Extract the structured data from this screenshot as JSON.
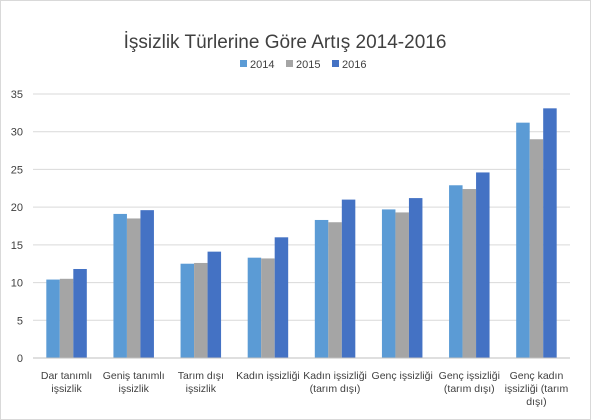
{
  "chart_data": {
    "type": "bar",
    "title": "İşsizlik Türlerine Göre Artış 2014-2016",
    "xlabel": "",
    "ylabel": "",
    "categories": [
      [
        "Dar tanımlı",
        "işsizlik"
      ],
      [
        "Geniş tanımlı",
        "işsizlik"
      ],
      [
        "Tarım dışı",
        "işsizlik"
      ],
      [
        "Kadın işsizliği"
      ],
      [
        "Kadın işsizliği",
        "(tarım dışı)"
      ],
      [
        "Genç işsizliği"
      ],
      [
        "Genç işsizliği",
        "(tarım dışı)"
      ],
      [
        "Genç kadın",
        "işsizliği (tarım",
        "dışı)"
      ]
    ],
    "series": [
      {
        "name": "2014",
        "color": "#5b9bd5",
        "values": [
          10.4,
          19.1,
          12.5,
          13.3,
          18.3,
          19.7,
          22.9,
          31.2
        ]
      },
      {
        "name": "2015",
        "color": "#a5a5a5",
        "values": [
          10.5,
          18.5,
          12.6,
          13.2,
          18.0,
          19.3,
          22.4,
          29.0
        ]
      },
      {
        "name": "2016",
        "color": "#4472c4",
        "values": [
          11.8,
          19.6,
          14.1,
          16.0,
          21.0,
          21.2,
          24.6,
          33.1
        ]
      }
    ],
    "ylim": [
      0,
      35
    ],
    "yticks": [
      "0",
      "5",
      "10",
      "15",
      "20",
      "25",
      "30",
      "35"
    ],
    "grid": true,
    "legend_position": "top-center",
    "colors": {
      "gridline": "#d9d9d9",
      "axis": "#bfbfbf",
      "text": "#404040"
    }
  }
}
